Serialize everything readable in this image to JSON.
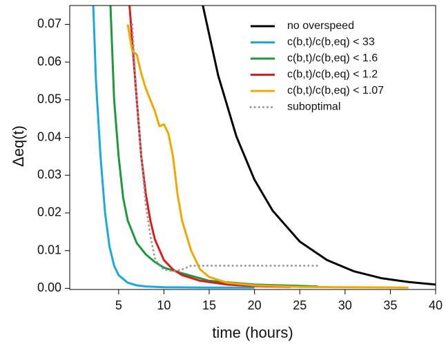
{
  "chart_data": {
    "type": "line",
    "x_label": "time (hours)",
    "y_label": "Δeq(t)",
    "xlim": [
      -0.4,
      40
    ],
    "ylim": [
      -0.0003,
      0.075
    ],
    "xticks": [
      5,
      10,
      15,
      20,
      25,
      30,
      35,
      40
    ],
    "yticks": [
      {
        "value": 0,
        "label": "0.00"
      },
      0.01,
      0.02,
      0.03,
      0.04,
      0.05,
      0.06,
      0.07
    ],
    "legend": "top-right",
    "series": [
      {
        "name": "no overspeed",
        "color": "#000000",
        "style": "solid",
        "x": [
          14.3,
          16,
          18,
          20,
          22,
          25,
          28,
          31,
          34,
          37,
          40
        ],
        "values": [
          0.075,
          0.0564,
          0.0403,
          0.0288,
          0.0206,
          0.0124,
          0.0075,
          0.0045,
          0.0027,
          0.0017,
          0.001
        ]
      },
      {
        "name": "c(b,t)/c(b,eq) < 33",
        "color": "#1aa8e0",
        "style": "solid",
        "x": [
          2.2,
          2.5,
          3,
          3.5,
          4,
          4.5,
          5,
          6,
          7,
          8,
          10,
          15,
          20
        ],
        "values": [
          0.075,
          0.055,
          0.035,
          0.02,
          0.011,
          0.006,
          0.0035,
          0.0015,
          0.0008,
          0.0005,
          0.0003,
          0.0002,
          0.0002
        ]
      },
      {
        "name": "c(b,t)/c(b,eq) < 1.6",
        "color": "#1a9a3a",
        "style": "solid",
        "x": [
          4.1,
          4.5,
          5,
          5.5,
          6,
          7,
          8,
          9,
          10,
          12,
          15,
          20,
          27
        ],
        "values": [
          0.075,
          0.05,
          0.035,
          0.024,
          0.018,
          0.012,
          0.009,
          0.007,
          0.0055,
          0.004,
          0.002,
          0.001,
          0.0005
        ]
      },
      {
        "name": "c(b,t)/c(b,eq) < 1.2",
        "color": "#e01b1b",
        "style": "solid",
        "x": [
          6.2,
          7,
          7.5,
          8,
          8.5,
          9,
          10,
          11,
          12,
          14,
          17,
          20,
          24
        ],
        "values": [
          0.075,
          0.05,
          0.035,
          0.025,
          0.018,
          0.013,
          0.0075,
          0.005,
          0.0035,
          0.002,
          0.001,
          0.0006,
          0.0004
        ]
      },
      {
        "name": "c(b,t)/c(b,eq) < 1.07",
        "color": "#f0a800",
        "style": "solid",
        "x": [
          6,
          6.5,
          7,
          7.5,
          8,
          9,
          9.5,
          10,
          10.5,
          11,
          11.5,
          12,
          13,
          14,
          15,
          17,
          20,
          25,
          30,
          37
        ],
        "values": [
          0.07,
          0.063,
          0.062,
          0.057,
          0.053,
          0.047,
          0.043,
          0.0435,
          0.041,
          0.035,
          0.025,
          0.018,
          0.01,
          0.005,
          0.003,
          0.0015,
          0.0008,
          0.0004,
          0.0003,
          0.0002
        ]
      },
      {
        "name": "suboptimal",
        "color": "#999999",
        "style": "dotted",
        "x": [
          6.5,
          7,
          7.5,
          8,
          8.5,
          9,
          9.5,
          10,
          11,
          12,
          13,
          15,
          20,
          27
        ],
        "values": [
          0.07,
          0.05,
          0.035,
          0.022,
          0.014,
          0.008,
          0.006,
          0.005,
          0.0045,
          0.005,
          0.006,
          0.006,
          0.006,
          0.006
        ]
      }
    ]
  }
}
